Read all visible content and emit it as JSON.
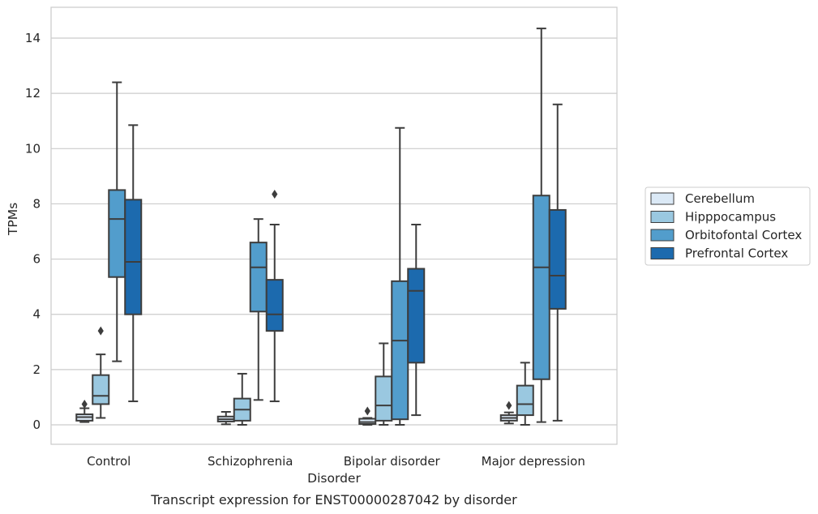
{
  "chart_data": {
    "type": "box",
    "caption": "Transcript expression for ENST00000287042 by disorder",
    "xlabel": "Disorder",
    "ylabel": "TPMs",
    "ylim": [
      -0.7,
      15.1
    ],
    "yticks": [
      0,
      2,
      4,
      6,
      8,
      10,
      12,
      14
    ],
    "grid": "horizontal",
    "legend_position": "right",
    "categories": [
      "Control",
      "Schizophrenia",
      "Bipolar disorder",
      "Major depression"
    ],
    "series": [
      {
        "name": "Cerebellum",
        "color": "#dbe9f6",
        "boxes": [
          {
            "whislo": 0.1,
            "q1": 0.15,
            "med": 0.28,
            "q3": 0.38,
            "whishi": 0.6,
            "fliers": [
              0.75
            ]
          },
          {
            "whislo": 0.02,
            "q1": 0.12,
            "med": 0.2,
            "q3": 0.3,
            "whishi": 0.47,
            "fliers": []
          },
          {
            "whislo": 0.0,
            "q1": 0.03,
            "med": 0.1,
            "q3": 0.22,
            "whishi": 0.25,
            "fliers": [
              0.5
            ]
          },
          {
            "whislo": 0.05,
            "q1": 0.15,
            "med": 0.25,
            "q3": 0.35,
            "whishi": 0.45,
            "fliers": [
              0.7
            ]
          }
        ]
      },
      {
        "name": "Hipppocampus",
        "color": "#9ac8e0",
        "boxes": [
          {
            "whislo": 0.25,
            "q1": 0.75,
            "med": 1.05,
            "q3": 1.8,
            "whishi": 2.55,
            "fliers": [
              3.4
            ]
          },
          {
            "whislo": 0.0,
            "q1": 0.15,
            "med": 0.55,
            "q3": 0.95,
            "whishi": 1.85,
            "fliers": []
          },
          {
            "whislo": 0.0,
            "q1": 0.15,
            "med": 0.7,
            "q3": 1.75,
            "whishi": 2.95,
            "fliers": []
          },
          {
            "whislo": 0.0,
            "q1": 0.35,
            "med": 0.75,
            "q3": 1.42,
            "whishi": 2.25,
            "fliers": []
          }
        ]
      },
      {
        "name": "Orbitofontal Cortex",
        "color": "#529dcc",
        "boxes": [
          {
            "whislo": 2.3,
            "q1": 5.35,
            "med": 7.45,
            "q3": 8.5,
            "whishi": 12.4,
            "fliers": []
          },
          {
            "whislo": 0.9,
            "q1": 4.1,
            "med": 5.7,
            "q3": 6.6,
            "whishi": 7.45,
            "fliers": []
          },
          {
            "whislo": 0.0,
            "q1": 0.2,
            "med": 3.05,
            "q3": 5.2,
            "whishi": 10.75,
            "fliers": []
          },
          {
            "whislo": 0.1,
            "q1": 1.65,
            "med": 5.7,
            "q3": 8.3,
            "whishi": 14.35,
            "fliers": []
          }
        ]
      },
      {
        "name": "Prefrontal Cortex",
        "color": "#1c6aae",
        "boxes": [
          {
            "whislo": 0.85,
            "q1": 4.0,
            "med": 5.9,
            "q3": 8.15,
            "whishi": 10.85,
            "fliers": []
          },
          {
            "whislo": 0.85,
            "q1": 3.4,
            "med": 4.0,
            "q3": 5.25,
            "whishi": 7.25,
            "fliers": [
              8.35
            ]
          },
          {
            "whislo": 0.35,
            "q1": 2.25,
            "med": 4.85,
            "q3": 5.65,
            "whishi": 7.25,
            "fliers": []
          },
          {
            "whislo": 0.15,
            "q1": 4.2,
            "med": 5.4,
            "q3": 7.78,
            "whishi": 11.6,
            "fliers": []
          }
        ]
      }
    ]
  }
}
